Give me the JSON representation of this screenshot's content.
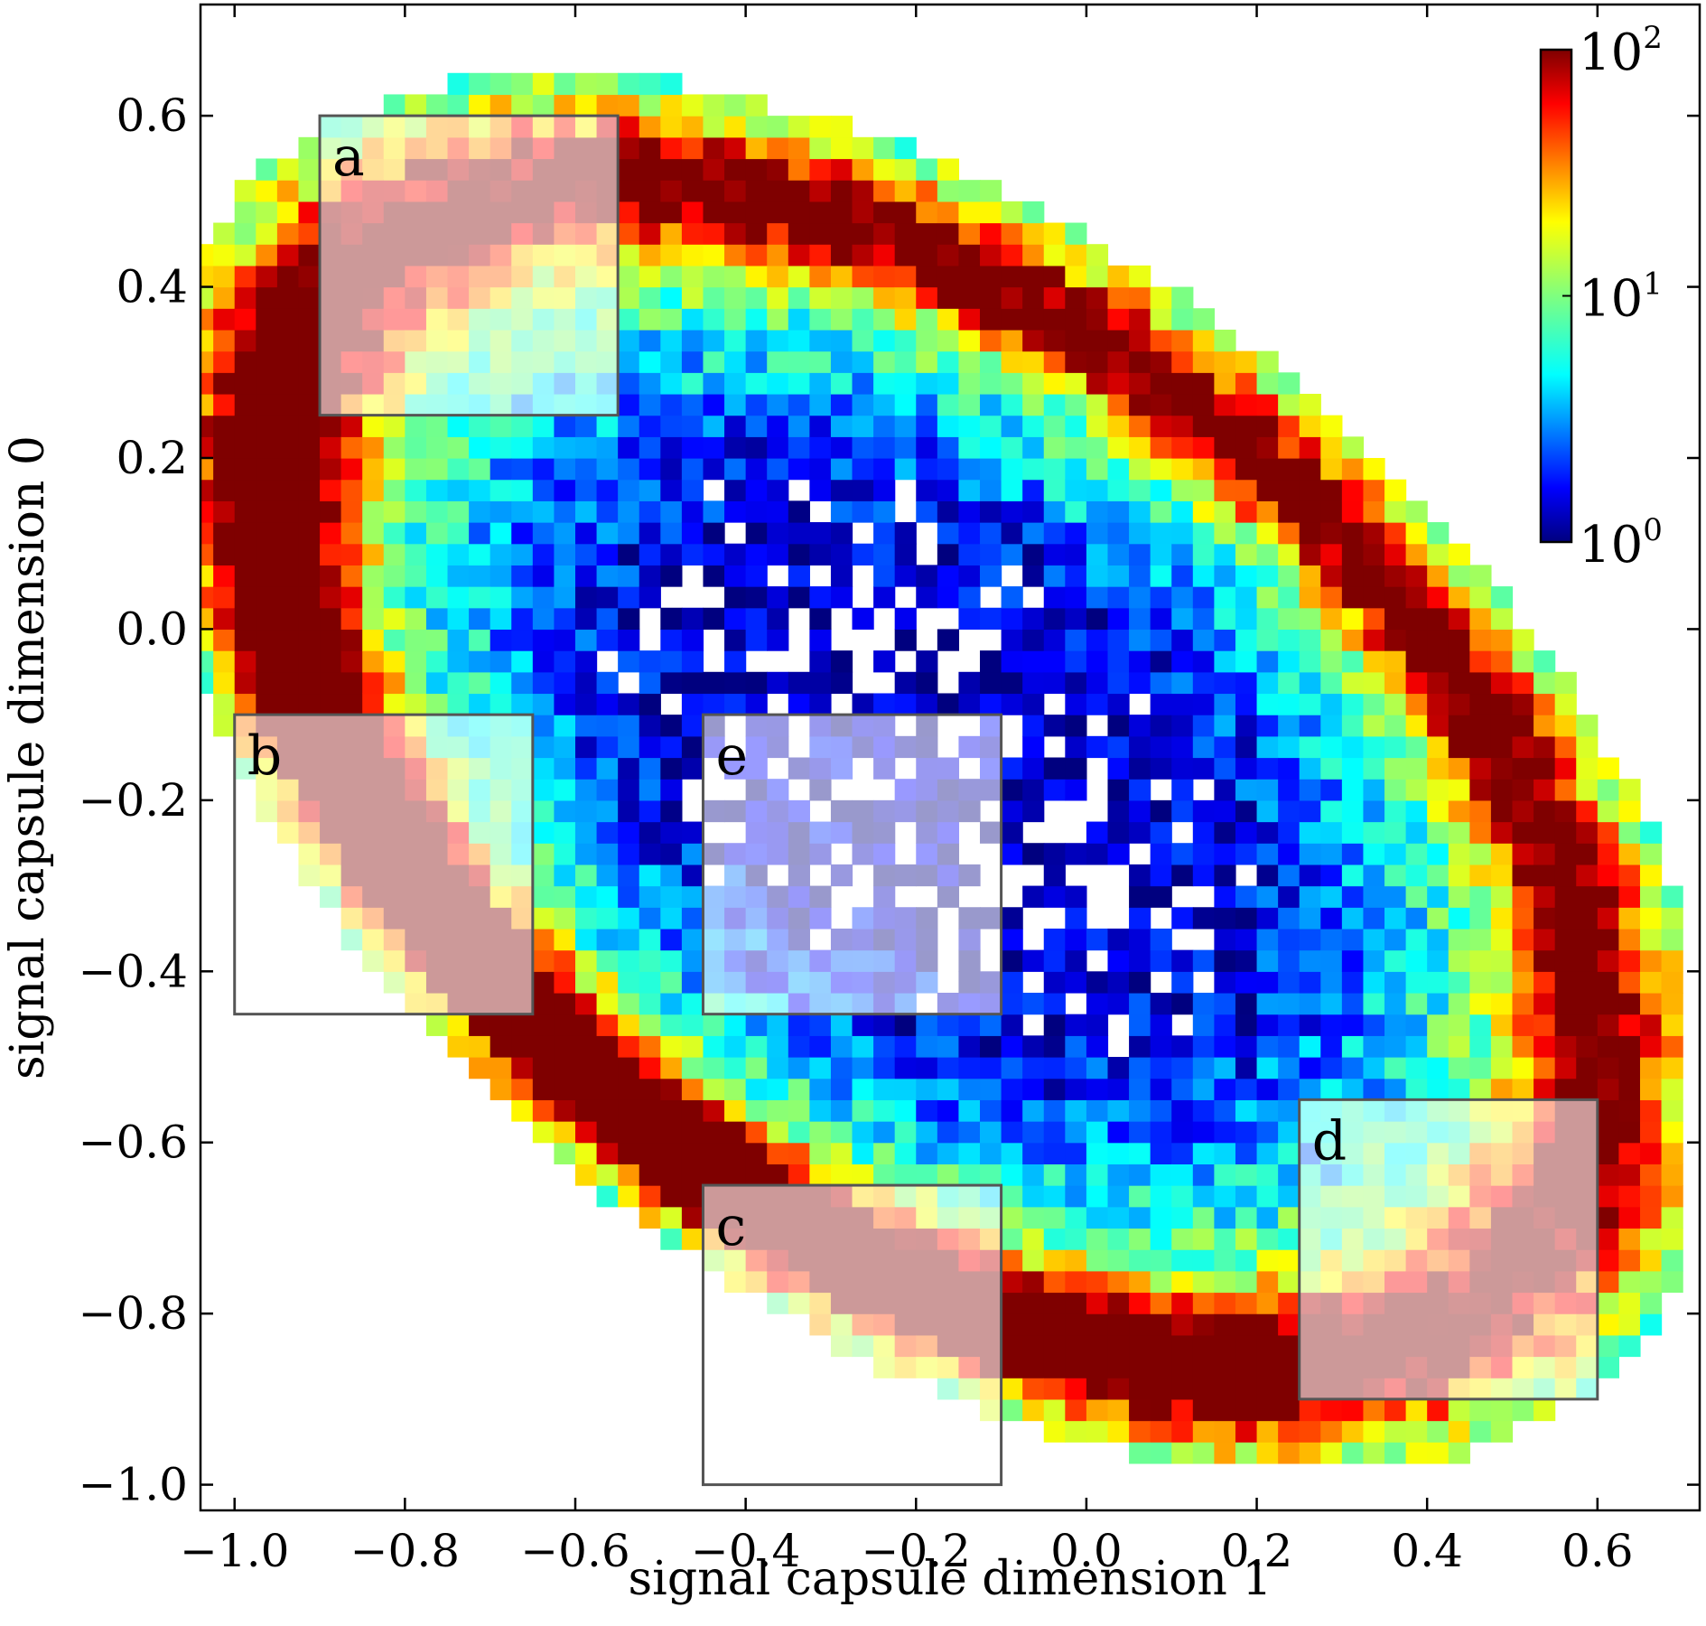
{
  "chart_data": {
    "type": "heatmap",
    "title": "",
    "xlabel": "signal capsule dimension 1",
    "ylabel": "signal capsule dimension 0",
    "xlim": [
      -1.04,
      0.72
    ],
    "ylim": [
      -1.03,
      0.73
    ],
    "bin_size": 0.025,
    "color_scale": "log",
    "colormap": "jet",
    "x_ticks": [
      {
        "value": -1.0,
        "label": "−1.0"
      },
      {
        "value": -0.8,
        "label": "−0.8"
      },
      {
        "value": -0.6,
        "label": "−0.6"
      },
      {
        "value": -0.4,
        "label": "−0.4"
      },
      {
        "value": -0.2,
        "label": "−0.2"
      },
      {
        "value": 0.0,
        "label": "0.0"
      },
      {
        "value": 0.2,
        "label": "0.2"
      },
      {
        "value": 0.4,
        "label": "0.4"
      },
      {
        "value": 0.6,
        "label": "0.6"
      }
    ],
    "y_ticks": [
      {
        "value": 0.6,
        "label": "0.6"
      },
      {
        "value": 0.4,
        "label": "0.4"
      },
      {
        "value": 0.2,
        "label": "0.2"
      },
      {
        "value": 0.0,
        "label": "0.0"
      },
      {
        "value": -0.2,
        "label": "−0.2"
      },
      {
        "value": -0.4,
        "label": "−0.4"
      },
      {
        "value": -0.6,
        "label": "−0.6"
      },
      {
        "value": -0.8,
        "label": "−0.8"
      },
      {
        "value": -1.0,
        "label": "−1.0"
      }
    ],
    "colorbar": {
      "min": 1,
      "max": 100,
      "ticks": [
        {
          "value": 100,
          "base": "10",
          "exp": "2"
        },
        {
          "value": 10,
          "base": "10",
          "exp": "1"
        },
        {
          "value": 1,
          "base": "10",
          "exp": "0"
        }
      ],
      "placement": "inside top-right"
    },
    "density_model": {
      "description": "bin counts (log scale) of points concentrated on a thick ellipse-like arc; counts are estimated from colors",
      "center": [
        -0.18,
        -0.17
      ],
      "semi_axis_along": 1.02,
      "semi_axis_across": 0.6,
      "orientation_deg": -38,
      "ring_radius": 0.88,
      "ring_width": 0.1,
      "inner_width": 0.35,
      "peak_count": 100,
      "max_radius": 1.04
    },
    "regions": [
      {
        "label": "a",
        "x": [
          -0.9,
          -0.55
        ],
        "y": [
          0.25,
          0.6
        ]
      },
      {
        "label": "b",
        "x": [
          -1.0,
          -0.65
        ],
        "y": [
          -0.45,
          -0.1
        ]
      },
      {
        "label": "c",
        "x": [
          -0.45,
          -0.1
        ],
        "y": [
          -1.0,
          -0.65
        ]
      },
      {
        "label": "d",
        "x": [
          0.25,
          0.6
        ],
        "y": [
          -0.9,
          -0.55
        ]
      },
      {
        "label": "e",
        "x": [
          -0.45,
          -0.1
        ],
        "y": [
          -0.45,
          -0.1
        ]
      }
    ],
    "region_overlay_color": "#ffffff",
    "region_overlay_opacity": 0.6,
    "region_border_color": "#555555",
    "grid": false
  }
}
